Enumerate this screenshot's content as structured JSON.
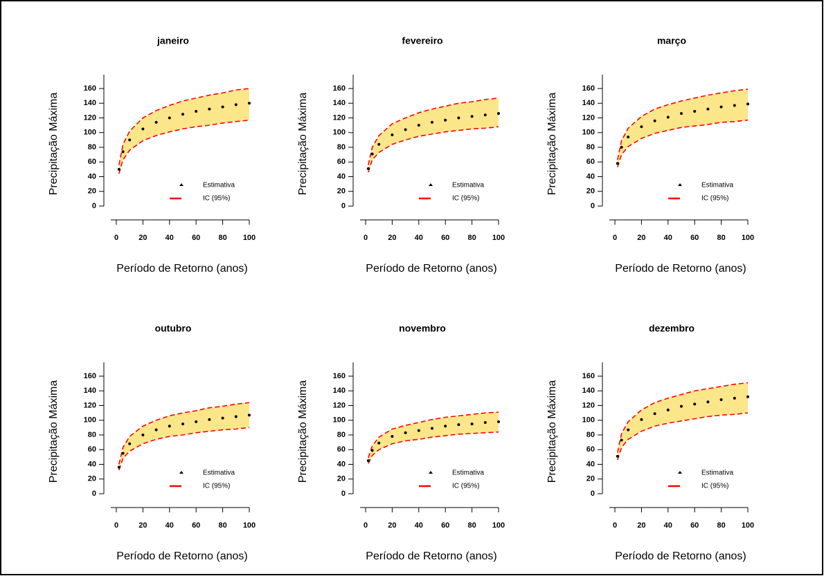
{
  "chart_data": [
    {
      "type": "line",
      "title": "janeiro",
      "xlabel": "Período de Retorno (anos)",
      "ylabel": "Precipitação Máxima",
      "x": [
        2,
        5,
        10,
        20,
        30,
        40,
        50,
        60,
        70,
        80,
        90,
        100
      ],
      "xlim": [
        0,
        100
      ],
      "xticks": [
        0,
        20,
        40,
        60,
        80,
        100
      ],
      "ylim": [
        0,
        160
      ],
      "yticks": [
        0,
        20,
        40,
        60,
        80,
        100,
        120,
        140,
        160
      ],
      "legend": "bottom-right",
      "series": [
        {
          "name": "Estimativa",
          "color": "#000000",
          "values": [
            50,
            74,
            90,
            105,
            114,
            120,
            125,
            129,
            132,
            135,
            138,
            140
          ]
        },
        {
          "name": "IC (95%)",
          "color": "#ff0000",
          "band_color": "#fce68a",
          "lower": [
            44,
            63,
            76,
            89,
            96,
            101,
            105,
            108,
            110,
            113,
            115,
            117
          ],
          "upper": [
            56,
            84,
            102,
            120,
            130,
            137,
            143,
            147,
            151,
            154,
            158,
            160
          ]
        }
      ]
    },
    {
      "type": "line",
      "title": "fevereiro",
      "xlabel": "Período de Retorno (anos)",
      "ylabel": "Precipitação Máxima",
      "x": [
        2,
        5,
        10,
        20,
        30,
        40,
        50,
        60,
        70,
        80,
        90,
        100
      ],
      "xlim": [
        0,
        100
      ],
      "xticks": [
        0,
        20,
        40,
        60,
        80,
        100
      ],
      "ylim": [
        0,
        160
      ],
      "yticks": [
        0,
        20,
        40,
        60,
        80,
        100,
        120,
        140,
        160
      ],
      "legend": "bottom-right",
      "series": [
        {
          "name": "Estimativa",
          "color": "#000000",
          "values": [
            51,
            71,
            84,
            97,
            104,
            110,
            114,
            117,
            120,
            122,
            124,
            126
          ]
        },
        {
          "name": "IC (95%)",
          "color": "#ff0000",
          "band_color": "#fce68a",
          "lower": [
            46,
            63,
            73,
            84,
            90,
            95,
            98,
            101,
            103,
            105,
            106,
            108
          ],
          "upper": [
            56,
            80,
            96,
            112,
            120,
            127,
            132,
            136,
            140,
            142,
            145,
            147
          ]
        }
      ]
    },
    {
      "type": "line",
      "title": "março",
      "xlabel": "Período de Retorno (anos)",
      "ylabel": "Precipitação Máxima",
      "x": [
        2,
        5,
        10,
        20,
        30,
        40,
        50,
        60,
        70,
        80,
        90,
        100
      ],
      "xlim": [
        0,
        100
      ],
      "xticks": [
        0,
        20,
        40,
        60,
        80,
        100
      ],
      "ylim": [
        0,
        160
      ],
      "yticks": [
        0,
        20,
        40,
        60,
        80,
        100,
        120,
        140,
        160
      ],
      "legend": "bottom-right",
      "series": [
        {
          "name": "Estimativa",
          "color": "#000000",
          "values": [
            58,
            80,
            94,
            108,
            116,
            121,
            126,
            129,
            132,
            135,
            137,
            139
          ]
        },
        {
          "name": "IC (95%)",
          "color": "#ff0000",
          "band_color": "#fce68a",
          "lower": [
            53,
            70,
            81,
            92,
            99,
            103,
            107,
            109,
            111,
            114,
            115,
            117
          ],
          "upper": [
            63,
            89,
            106,
            122,
            132,
            138,
            143,
            147,
            151,
            154,
            157,
            159
          ]
        }
      ]
    },
    {
      "type": "line",
      "title": "outubro",
      "xlabel": "Período de Retorno (anos)",
      "ylabel": "Precipitação Máxima",
      "x": [
        2,
        5,
        10,
        20,
        30,
        40,
        50,
        60,
        70,
        80,
        90,
        100
      ],
      "xlim": [
        0,
        100
      ],
      "xticks": [
        0,
        20,
        40,
        60,
        80,
        100
      ],
      "ylim": [
        0,
        160
      ],
      "yticks": [
        0,
        20,
        40,
        60,
        80,
        100,
        120,
        140,
        160
      ],
      "legend": "bottom-right",
      "series": [
        {
          "name": "Estimativa",
          "color": "#000000",
          "values": [
            36,
            55,
            68,
            80,
            87,
            92,
            95,
            98,
            101,
            103,
            105,
            107
          ]
        },
        {
          "name": "IC (95%)",
          "color": "#ff0000",
          "band_color": "#fce68a",
          "lower": [
            32,
            48,
            58,
            68,
            74,
            78,
            80,
            83,
            85,
            87,
            88,
            90
          ],
          "upper": [
            40,
            63,
            78,
            92,
            100,
            106,
            110,
            113,
            117,
            119,
            122,
            124
          ]
        }
      ]
    },
    {
      "type": "line",
      "title": "novembro",
      "xlabel": "Período de Retorno (anos)",
      "ylabel": "Precipitação Máxima",
      "x": [
        2,
        5,
        10,
        20,
        30,
        40,
        50,
        60,
        70,
        80,
        90,
        100
      ],
      "xlim": [
        0,
        100
      ],
      "xticks": [
        0,
        20,
        40,
        60,
        80,
        100
      ],
      "ylim": [
        0,
        160
      ],
      "yticks": [
        0,
        20,
        40,
        60,
        80,
        100,
        120,
        140,
        160
      ],
      "legend": "bottom-right",
      "series": [
        {
          "name": "Estimativa",
          "color": "#000000",
          "values": [
            45,
            59,
            69,
            78,
            83,
            86,
            89,
            92,
            94,
            95,
            97,
            98
          ]
        },
        {
          "name": "IC (95%)",
          "color": "#ff0000",
          "band_color": "#fce68a",
          "lower": [
            41,
            52,
            60,
            68,
            72,
            74,
            77,
            79,
            81,
            82,
            83,
            84
          ],
          "upper": [
            49,
            65,
            77,
            88,
            93,
            97,
            101,
            104,
            106,
            108,
            110,
            111
          ]
        }
      ]
    },
    {
      "type": "line",
      "title": "dezembro",
      "xlabel": "Período de Retorno (anos)",
      "ylabel": "Precipitação Máxima",
      "x": [
        2,
        5,
        10,
        20,
        30,
        40,
        50,
        60,
        70,
        80,
        90,
        100
      ],
      "xlim": [
        0,
        100
      ],
      "xticks": [
        0,
        20,
        40,
        60,
        80,
        100
      ],
      "ylim": [
        0,
        160
      ],
      "yticks": [
        0,
        20,
        40,
        60,
        80,
        100,
        120,
        140,
        160
      ],
      "legend": "bottom-right",
      "series": [
        {
          "name": "Estimativa",
          "color": "#000000",
          "values": [
            51,
            73,
            87,
            101,
            109,
            114,
            119,
            122,
            125,
            128,
            130,
            132
          ]
        },
        {
          "name": "IC (95%)",
          "color": "#ff0000",
          "band_color": "#fce68a",
          "lower": [
            46,
            63,
            74,
            85,
            92,
            96,
            99,
            102,
            105,
            107,
            108,
            110
          ],
          "upper": [
            56,
            82,
            98,
            114,
            124,
            130,
            135,
            140,
            143,
            146,
            149,
            151
          ]
        }
      ]
    }
  ]
}
